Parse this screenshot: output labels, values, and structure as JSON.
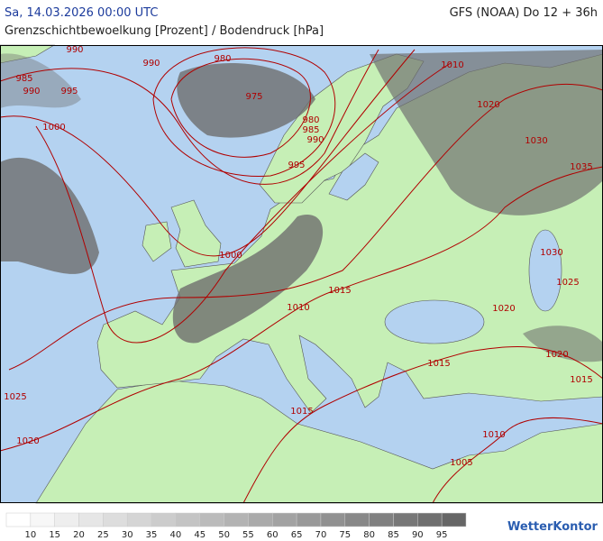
{
  "header": {
    "datetime": "Sa, 14.03.2026 00:00 UTC",
    "model": "GFS (NOAA) Do 12 + 36h",
    "subtitle": "Grenzschichtbewoelkung [Prozent] / Bodendruck [hPa]"
  },
  "map": {
    "isobar_labels": [
      "990",
      "990",
      "980",
      "985",
      "990",
      "995",
      "975",
      "1000",
      "980",
      "985",
      "990",
      "995",
      "1010",
      "1020",
      "1030",
      "1035",
      "1030",
      "1025",
      "1000",
      "1015",
      "1010",
      "1020",
      "1020",
      "1015",
      "1015",
      "1025",
      "1015",
      "1020",
      "1010",
      "1005"
    ]
  },
  "legend": {
    "values": [
      10,
      15,
      20,
      25,
      30,
      35,
      40,
      45,
      50,
      55,
      60,
      65,
      70,
      75,
      80,
      85,
      90,
      95
    ]
  },
  "logo": "WetterKontor"
}
